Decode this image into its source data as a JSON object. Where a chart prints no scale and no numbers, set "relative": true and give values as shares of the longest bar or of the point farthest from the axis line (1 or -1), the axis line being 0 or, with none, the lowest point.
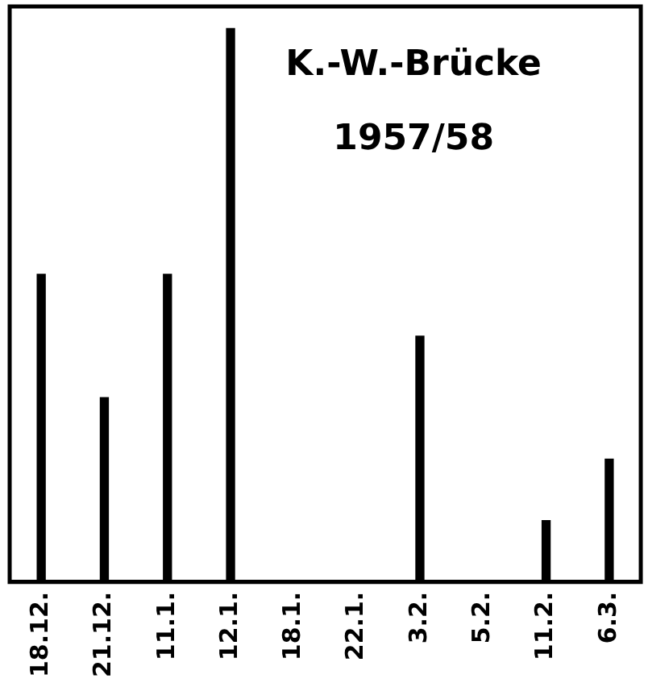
{
  "chart_data": {
    "type": "bar",
    "title": "K.-W.-Brücke",
    "subtitle": "1957/58",
    "relative": true,
    "categories": [
      "18.12.",
      "21.12.",
      "11.1.",
      "12.1.",
      "18.1.",
      "22.1.",
      "3.2.",
      "5.2.",
      "11.2.",
      "6.3."
    ],
    "values": [
      0.556,
      0.333,
      0.556,
      1,
      0,
      0,
      0.444,
      0,
      0.111,
      0.222
    ],
    "color": "#000000",
    "grid": false,
    "legend": false
  }
}
